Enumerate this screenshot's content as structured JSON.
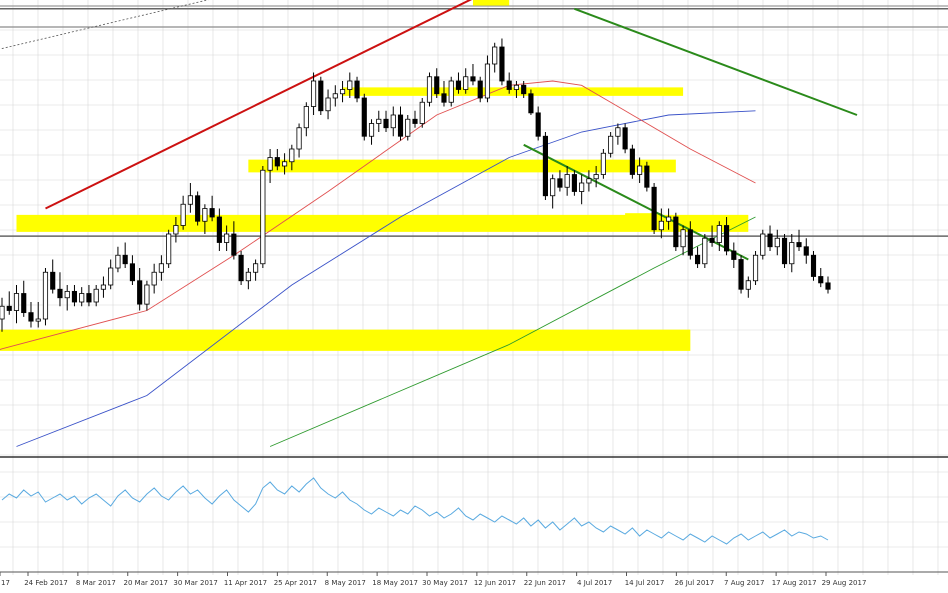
{
  "chart_data": {
    "type": "candlestick",
    "title": "",
    "colors": {
      "up_candle": "#ffffff",
      "down_candle": "#000000",
      "ma_fast": "#e05050",
      "ma_mid": "#3a52c8",
      "ma_slow": "#2e9a2e",
      "oscillator": "#5aaae0",
      "trend_red": "#cc1111",
      "trend_green": "#2a8a1a",
      "zone": "#ffff00",
      "grid": "#d8d8d8",
      "hline": "#666666"
    },
    "x_labels": [
      "24 Feb 2017",
      "8 Mar 2017",
      "20 Mar 2017",
      "30 Mar 2017",
      "11 Apr 2017",
      "25 Apr 2017",
      "8 May 2017",
      "18 May 2017",
      "30 May 2017",
      "12 Jun 2017",
      "22 Jun 2017",
      "4 Jul 2017",
      "14 Jul 2017",
      "26 Jul 2017",
      "7 Aug 2017",
      "17 Aug 2017",
      "29 Aug 2017"
    ],
    "y_range": [
      0,
      100
    ],
    "candles": [
      [
        32.0,
        37.0,
        29.0,
        35.0
      ],
      [
        35.0,
        38.5,
        33.0,
        34.0
      ],
      [
        34.0,
        40.0,
        31.0,
        38.0
      ],
      [
        38.0,
        41.0,
        32.5,
        33.5
      ],
      [
        33.5,
        36.0,
        30.0,
        31.5
      ],
      [
        31.5,
        36.0,
        30.0,
        32.0
      ],
      [
        32.0,
        44.0,
        30.5,
        43.0
      ],
      [
        43.0,
        46.0,
        38.0,
        39.0
      ],
      [
        39.0,
        43.0,
        35.0,
        37.0
      ],
      [
        37.0,
        40.0,
        34.0,
        38.5
      ],
      [
        38.5,
        40.0,
        35.0,
        36.0
      ],
      [
        36.0,
        39.5,
        35.0,
        38.0
      ],
      [
        38.0,
        40.0,
        35.0,
        36.0
      ],
      [
        36.0,
        40.0,
        35.0,
        39.0
      ],
      [
        39.0,
        42.0,
        37.0,
        40.0
      ],
      [
        40.0,
        46.0,
        39.0,
        44.0
      ],
      [
        44.0,
        49.0,
        43.0,
        47.0
      ],
      [
        47.0,
        50.0,
        44.0,
        45.0
      ],
      [
        45.0,
        47.0,
        40.0,
        41.0
      ],
      [
        41.0,
        44.0,
        34.0,
        35.5
      ],
      [
        35.5,
        41.0,
        34.0,
        40.0
      ],
      [
        40.0,
        45.0,
        38.0,
        43.0
      ],
      [
        43.0,
        47.0,
        41.0,
        45.0
      ],
      [
        45.0,
        53.0,
        44.0,
        52.0
      ],
      [
        52.0,
        56.0,
        50.0,
        54.0
      ],
      [
        54.0,
        61.0,
        53.0,
        59.0
      ],
      [
        59.0,
        64.0,
        57.0,
        61.0
      ],
      [
        61.0,
        62.0,
        54.0,
        55.0
      ],
      [
        55.0,
        59.0,
        52.0,
        58.0
      ],
      [
        58.0,
        61.0,
        55.0,
        56.0
      ],
      [
        56.0,
        58.0,
        48.0,
        50.0
      ],
      [
        50.0,
        54.0,
        48.0,
        52.0
      ],
      [
        52.0,
        55.0,
        46.0,
        47.0
      ],
      [
        47.0,
        48.0,
        40.0,
        41.0
      ],
      [
        41.0,
        44.0,
        39.0,
        43.0
      ],
      [
        43.0,
        46.0,
        41.0,
        45.0
      ],
      [
        45.0,
        68.0,
        44.0,
        67.0
      ],
      [
        67.0,
        72.0,
        64.0,
        70.0
      ],
      [
        70.0,
        72.0,
        67.0,
        68.0
      ],
      [
        68.0,
        71.0,
        66.0,
        69.0
      ],
      [
        69.0,
        73.0,
        67.0,
        72.0
      ],
      [
        72.0,
        78.0,
        70.0,
        77.0
      ],
      [
        77.0,
        83.0,
        75.0,
        82.0
      ],
      [
        82.0,
        90.0,
        80.0,
        88.0
      ],
      [
        88.0,
        89.0,
        80.0,
        81.0
      ],
      [
        81.0,
        86.0,
        79.0,
        84.0
      ],
      [
        84.0,
        87.0,
        82.0,
        85.0
      ],
      [
        85.0,
        88.0,
        83.0,
        86.0
      ],
      [
        86.0,
        90.0,
        84.0,
        88.0
      ],
      [
        88.0,
        89.0,
        83.0,
        84.0
      ],
      [
        84.0,
        85.0,
        74.0,
        75.0
      ],
      [
        75.0,
        79.0,
        73.0,
        78.0
      ],
      [
        78.0,
        81.0,
        76.0,
        79.0
      ],
      [
        79.0,
        81.0,
        76.0,
        77.0
      ],
      [
        77.0,
        82.0,
        75.0,
        80.0
      ],
      [
        80.0,
        82.0,
        74.0,
        75.0
      ],
      [
        75.0,
        80.0,
        74.0,
        79.0
      ],
      [
        79.0,
        81.0,
        77.0,
        78.0
      ],
      [
        78.0,
        84.0,
        77.0,
        83.0
      ],
      [
        83.0,
        90.0,
        82.0,
        89.0
      ],
      [
        89.0,
        91.0,
        84.0,
        85.0
      ],
      [
        85.0,
        88.0,
        82.0,
        83.0
      ],
      [
        83.0,
        89.0,
        82.0,
        88.0
      ],
      [
        88.0,
        90.0,
        85.0,
        86.0
      ],
      [
        86.0,
        91.0,
        85.0,
        89.0
      ],
      [
        89.0,
        92.0,
        87.0,
        88.0
      ],
      [
        88.0,
        89.0,
        83.0,
        84.0
      ],
      [
        84.0,
        94.0,
        83.0,
        92.0
      ],
      [
        92.0,
        97.0,
        90.0,
        96.0
      ],
      [
        96.0,
        98.0,
        87.0,
        88.0
      ],
      [
        88.0,
        90.0,
        85.0,
        86.0
      ],
      [
        86.0,
        88.0,
        84.0,
        87.0
      ],
      [
        87.0,
        88.0,
        84.0,
        85.0
      ],
      [
        85.0,
        86.0,
        80.0,
        80.5
      ],
      [
        80.5,
        82.0,
        74.0,
        75.0
      ],
      [
        75.0,
        76.0,
        60.0,
        61.0
      ],
      [
        61.0,
        66.0,
        58.0,
        65.0
      ],
      [
        65.0,
        67.0,
        62.0,
        63.0
      ],
      [
        63.0,
        68.0,
        61.0,
        66.0
      ],
      [
        66.0,
        67.0,
        61.0,
        62.0
      ],
      [
        62.0,
        66.0,
        59.0,
        64.0
      ],
      [
        64.0,
        67.0,
        62.0,
        65.0
      ],
      [
        65.0,
        68.0,
        63.0,
        66.0
      ],
      [
        66.0,
        72.0,
        65.0,
        71.0
      ],
      [
        71.0,
        76.0,
        70.0,
        75.0
      ],
      [
        75.0,
        78.0,
        73.0,
        77.0
      ],
      [
        77.0,
        78.0,
        71.0,
        72.0
      ],
      [
        72.0,
        73.0,
        65.0,
        66.0
      ],
      [
        66.0,
        70.0,
        64.0,
        68.0
      ],
      [
        68.0,
        69.0,
        62.0,
        63.0
      ],
      [
        63.0,
        64.0,
        52.0,
        53.0
      ],
      [
        53.0,
        58.0,
        51.0,
        55.0
      ],
      [
        55.0,
        58.0,
        53.0,
        56.0
      ],
      [
        56.0,
        57.0,
        48.0,
        49.0
      ],
      [
        49.0,
        54.0,
        47.0,
        53.0
      ],
      [
        53.0,
        55.0,
        46.0,
        47.0
      ],
      [
        47.0,
        49.0,
        44.0,
        45.0
      ],
      [
        45.0,
        52.0,
        44.0,
        51.0
      ],
      [
        51.0,
        54.0,
        49.0,
        50.0
      ],
      [
        50.0,
        55.0,
        48.0,
        54.0
      ],
      [
        54.0,
        56.0,
        47.0,
        48.0
      ],
      [
        48.0,
        50.0,
        44.0,
        46.0
      ],
      [
        46.0,
        47.0,
        38.0,
        39.0
      ],
      [
        39.0,
        42.0,
        37.0,
        41.0
      ],
      [
        41.0,
        48.0,
        40.0,
        47.0
      ],
      [
        47.0,
        53.0,
        46.0,
        52.0
      ],
      [
        52.0,
        54.0,
        48.0,
        49.0
      ],
      [
        49.0,
        53.0,
        47.0,
        51.0
      ],
      [
        51.0,
        52.0,
        44.0,
        45.0
      ],
      [
        45.0,
        52.0,
        43.0,
        50.0
      ],
      [
        50.0,
        53.0,
        48.0,
        49.0
      ],
      [
        49.0,
        51.0,
        45.0,
        47.0
      ],
      [
        47.0,
        48.0,
        41.0,
        42.0
      ],
      [
        42.0,
        44.0,
        39.5,
        40.5
      ],
      [
        40.5,
        42.0,
        38.0,
        39.0
      ]
    ],
    "oscillator": [
      55,
      58,
      56,
      60,
      57,
      59,
      54,
      56,
      58,
      55,
      57,
      53,
      56,
      58,
      55,
      52,
      57,
      60,
      56,
      54,
      58,
      61,
      57,
      55,
      59,
      62,
      58,
      60,
      56,
      53,
      57,
      60,
      55,
      52,
      49,
      53,
      61,
      64,
      60,
      58,
      62,
      59,
      63,
      66,
      61,
      58,
      56,
      59,
      55,
      53,
      50,
      48,
      51,
      49,
      47,
      50,
      48,
      52,
      50,
      47,
      49,
      46,
      48,
      51,
      47,
      45,
      48,
      46,
      44,
      47,
      45,
      43,
      46,
      42,
      45,
      41,
      44,
      40,
      43,
      46,
      42,
      44,
      41,
      39,
      42,
      40,
      38,
      41,
      37,
      40,
      38,
      36,
      39,
      37,
      35,
      38,
      36,
      34,
      37,
      35,
      33,
      36,
      38,
      35,
      37,
      39,
      36,
      38,
      40,
      37,
      39,
      38,
      36,
      37,
      35
    ],
    "lines": {
      "red_channel_upper": [
        [
          -14,
          125
        ],
        [
          35,
          151
        ]
      ],
      "red_channel_lower": [
        [
          6,
          58
        ],
        [
          86,
          125
        ]
      ],
      "green_channel_upper": [
        [
          79,
          105
        ],
        [
          118,
          80
        ]
      ],
      "green_channel_lower": [
        [
          72,
          73
        ],
        [
          103,
          46
        ]
      ],
      "dotted_trend": [
        [
          -14,
          90
        ],
        [
          48,
          115
        ]
      ]
    },
    "zones": [
      {
        "x": [
          2,
          103
        ],
        "y": 54.5,
        "h": 4
      },
      {
        "x": [
          34,
          93
        ],
        "y": 68,
        "h": 3
      },
      {
        "x": [
          47,
          94
        ],
        "y": 85.5,
        "h": 2
      },
      {
        "x": [
          65,
          70
        ],
        "y": 107,
        "h": 2.5
      },
      {
        "x": [
          -1,
          95
        ],
        "y": 27,
        "h": 5
      },
      {
        "x": [
          86,
          91
        ],
        "y": 56,
        "h": 1.8
      }
    ],
    "hlines": [
      51.5,
      105
    ],
    "ma_fast": [
      [
        -14,
        17
      ],
      [
        0,
        25
      ],
      [
        20,
        34
      ],
      [
        32,
        47
      ],
      [
        45,
        62
      ],
      [
        60,
        80
      ],
      [
        70,
        87
      ],
      [
        76,
        88
      ],
      [
        80,
        87
      ],
      [
        85,
        82
      ],
      [
        95,
        72
      ],
      [
        104,
        64
      ]
    ],
    "ma_mid": [
      [
        2,
        2
      ],
      [
        20,
        14
      ],
      [
        40,
        40
      ],
      [
        55,
        56
      ],
      [
        70,
        70
      ],
      [
        80,
        76
      ],
      [
        92,
        80
      ],
      [
        104,
        81
      ]
    ],
    "ma_slow": [
      [
        37,
        2
      ],
      [
        70,
        26
      ],
      [
        90,
        44
      ],
      [
        104,
        56
      ]
    ]
  }
}
